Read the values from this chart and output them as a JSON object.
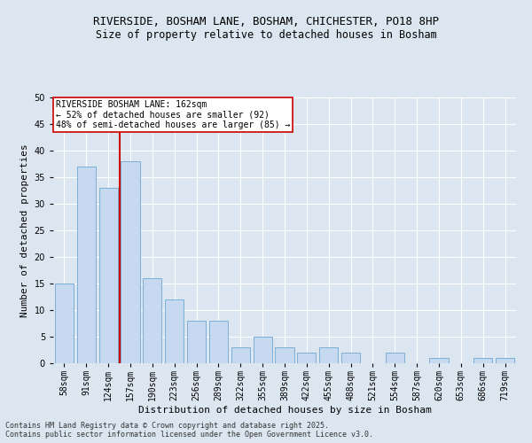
{
  "title_line1": "RIVERSIDE, BOSHAM LANE, BOSHAM, CHICHESTER, PO18 8HP",
  "title_line2": "Size of property relative to detached houses in Bosham",
  "xlabel": "Distribution of detached houses by size in Bosham",
  "ylabel": "Number of detached properties",
  "bins": [
    "58sqm",
    "91sqm",
    "124sqm",
    "157sqm",
    "190sqm",
    "223sqm",
    "256sqm",
    "289sqm",
    "322sqm",
    "355sqm",
    "389sqm",
    "422sqm",
    "455sqm",
    "488sqm",
    "521sqm",
    "554sqm",
    "587sqm",
    "620sqm",
    "653sqm",
    "686sqm",
    "719sqm"
  ],
  "values": [
    15,
    37,
    33,
    38,
    16,
    12,
    8,
    8,
    3,
    5,
    3,
    2,
    3,
    2,
    0,
    2,
    0,
    1,
    0,
    1,
    1
  ],
  "bar_color": "#c6d9f0",
  "bar_edge_color": "#7bafd4",
  "vline_color": "#cc0000",
  "vline_x_pos": 3.5,
  "vline_label": "RIVERSIDE BOSHAM LANE: 162sqm",
  "annotation_line2": "← 52% of detached houses are smaller (92)",
  "annotation_line3": "48% of semi-detached houses are larger (85) →",
  "annotation_box_facecolor": "#ffffff",
  "annotation_box_edgecolor": "#cc0000",
  "ylim": [
    0,
    50
  ],
  "yticks": [
    0,
    5,
    10,
    15,
    20,
    25,
    30,
    35,
    40,
    45,
    50
  ],
  "background_color": "#dce6f1",
  "footer_line1": "Contains HM Land Registry data © Crown copyright and database right 2025.",
  "footer_line2": "Contains public sector information licensed under the Open Government Licence v3.0.",
  "title1_fontsize": 9,
  "title2_fontsize": 8.5,
  "ylabel_fontsize": 8,
  "xlabel_fontsize": 8,
  "tick_fontsize": 7,
  "annot_fontsize": 7,
  "footer_fontsize": 6
}
